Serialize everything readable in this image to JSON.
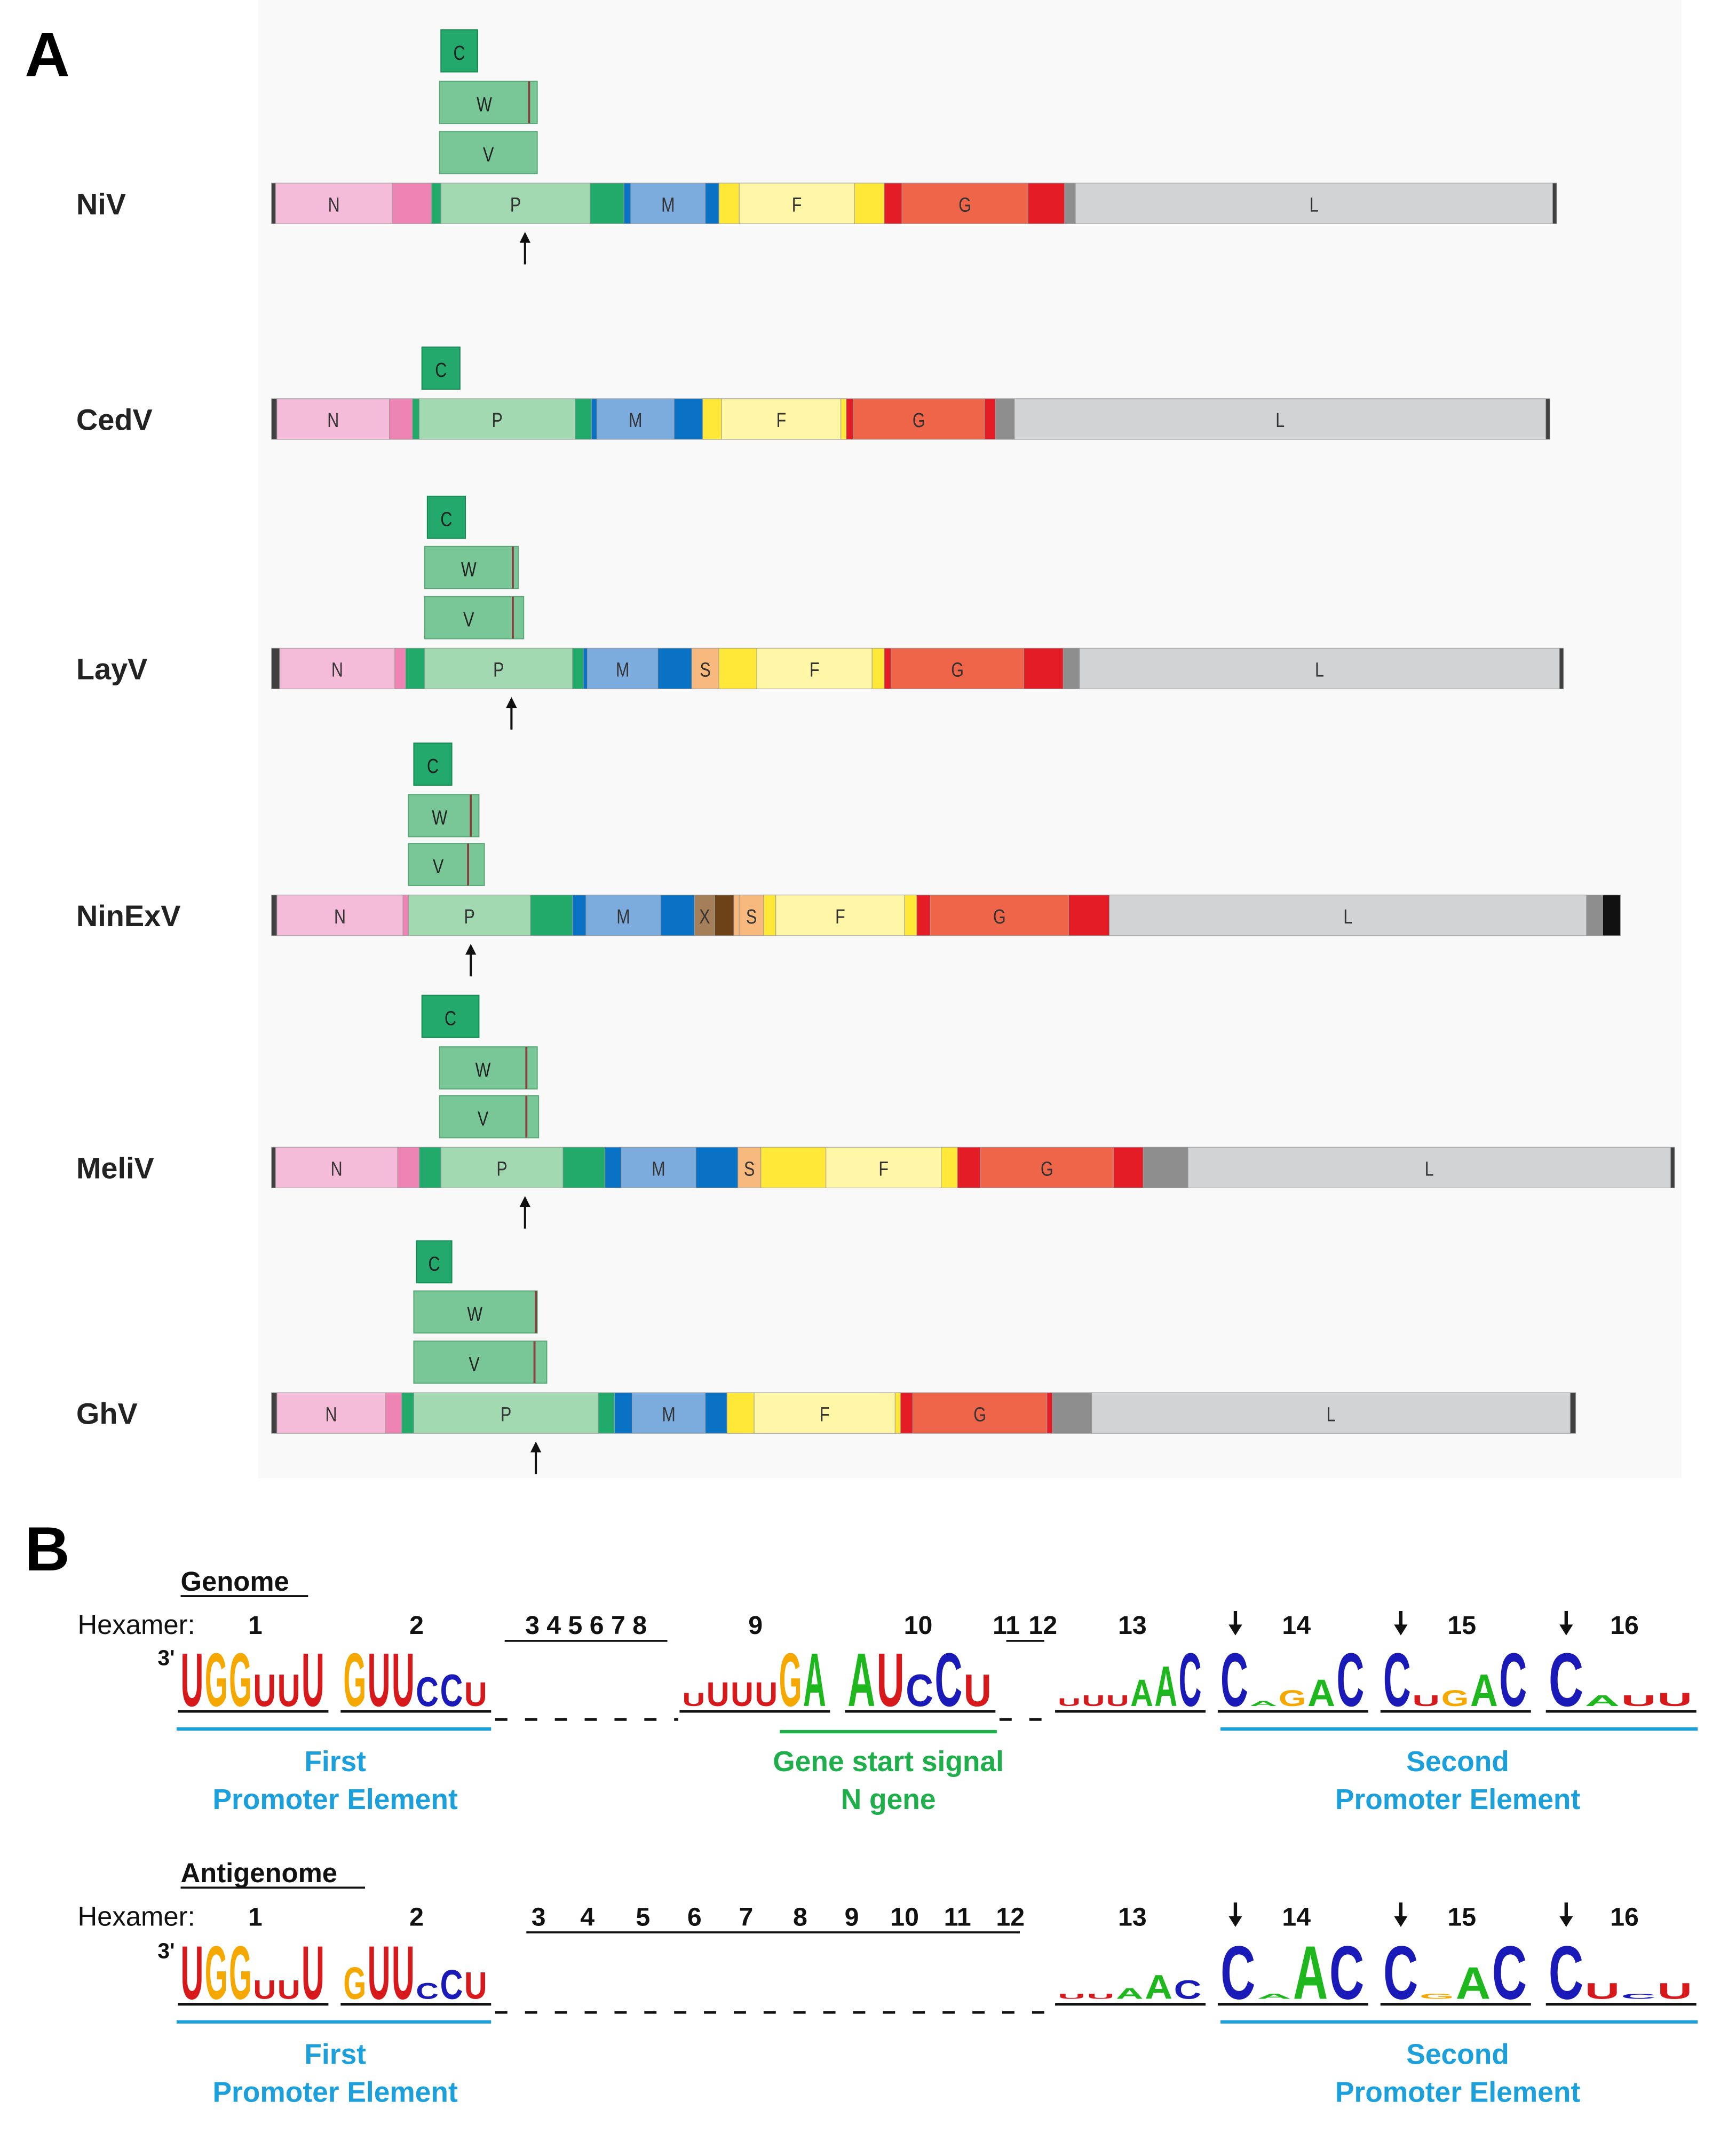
{
  "panel_a": {
    "label": "A",
    "viruses": [
      {
        "name": "NiV",
        "genes": [
          "N",
          "P",
          "M",
          "F",
          "G",
          "L"
        ],
        "proteins": [
          "C",
          "W",
          "V"
        ]
      },
      {
        "name": "CedV",
        "genes": [
          "N",
          "P",
          "M",
          "F",
          "G",
          "L"
        ],
        "proteins": [
          "C"
        ]
      },
      {
        "name": "LayV",
        "genes": [
          "N",
          "P",
          "M",
          "S",
          "F",
          "G",
          "L"
        ],
        "proteins": [
          "C",
          "W",
          "V"
        ]
      },
      {
        "name": "NinExV",
        "genes": [
          "N",
          "P",
          "M",
          "X",
          "S",
          "F",
          "G",
          "L"
        ],
        "proteins": [
          "C",
          "W",
          "V"
        ]
      },
      {
        "name": "MeliV",
        "genes": [
          "N",
          "P",
          "M",
          "S",
          "F",
          "G",
          "L"
        ],
        "proteins": [
          "C",
          "W",
          "V"
        ]
      },
      {
        "name": "GhV",
        "genes": [
          "N",
          "P",
          "M",
          "F",
          "G",
          "L"
        ],
        "proteins": [
          "C",
          "W",
          "V"
        ]
      }
    ]
  },
  "panel_b": {
    "label": "B",
    "sections": [
      {
        "title": "Genome",
        "hexamer_label": "Hexamer:",
        "prime": "3'",
        "hexamers": [
          "1",
          "2",
          "3 4 5 6 7 8",
          "9",
          "10",
          "11",
          "12",
          "13",
          "14",
          "15",
          "16"
        ],
        "logos": [
          [
            "U",
            "G",
            "G",
            "U",
            "U",
            "U"
          ],
          [
            "G",
            "U",
            "U",
            "C",
            "C",
            "U"
          ],
          [
            "U",
            "U",
            "U",
            "U",
            "G",
            "A"
          ],
          [
            "A",
            "U",
            "C",
            "C",
            "U"
          ],
          [
            "U",
            "U",
            "U",
            "A",
            "A",
            "C"
          ],
          [
            "C",
            "A",
            "G",
            "A",
            "C"
          ],
          [
            "C",
            "U",
            "G",
            "A",
            "C"
          ],
          [
            "C",
            "A",
            "U",
            "U"
          ]
        ],
        "regions": [
          [
            "First",
            "Promoter Element"
          ],
          [
            "Gene start signal",
            "N gene"
          ],
          [
            "Second",
            "Promoter Element"
          ]
        ]
      },
      {
        "title": "Antigenome",
        "hexamer_label": "Hexamer:",
        "prime": "3'",
        "hexamers": [
          "1",
          "2",
          "3",
          "4",
          "5",
          "6",
          "7",
          "8",
          "9",
          "10",
          "11",
          "12",
          "13",
          "14",
          "15",
          "16"
        ],
        "logos": [
          [
            "U",
            "G",
            "G",
            "U",
            "U",
            "U"
          ],
          [
            "G",
            "U",
            "U",
            "C",
            "C",
            "U"
          ],
          [
            "U",
            "U",
            "A",
            "A",
            "C"
          ],
          [
            "C",
            "A",
            "A",
            "C"
          ],
          [
            "C",
            "G",
            "A",
            "C"
          ],
          [
            "C",
            "U",
            "C",
            "U"
          ]
        ],
        "regions": [
          [
            "First",
            "Promoter Element"
          ],
          [
            "Second",
            "Promoter Element"
          ]
        ]
      }
    ]
  }
}
